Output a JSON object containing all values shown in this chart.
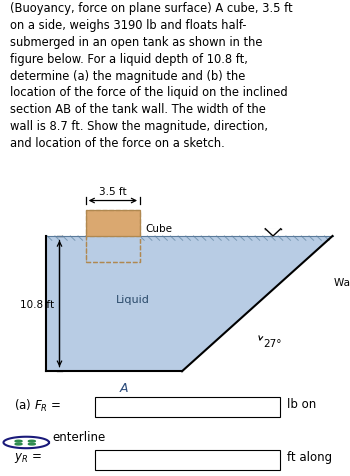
{
  "title_text": "(Buoyancy, force on plane surface) A cube, 3.5 ft on a side, weighs 3190 lb and floats half-submerged in an open tank as shown in the figure below. For a liquid depth of 10.8 ft, determine (a) the magnitude and (b) the location of the force of the liquid on the inclined section AB of the tank wall. The width of the wall is 8.7 ft. Show the magnitude, direction, and location of the force on a sketch.",
  "bg_color": "#ffffff",
  "liquid_color": "#b8cce4",
  "cube_color": "#daa870",
  "cube_edge_color": "#b08850",
  "hatch_color": "#8aaac0",
  "dim_35": "3.5 ft",
  "label_cube": "Cube",
  "label_liquid": "Liquid",
  "label_depth": "10.8 ft",
  "label_wall": "Wall width",
  "label_angle": "27°",
  "label_A": "A",
  "label_a": "(a) F_R =",
  "label_lb_on": "lb on",
  "label_enterline": "enterline",
  "label_yR": "y_R =",
  "label_ft_along": "ft along",
  "text_fontsize": 8.3,
  "fig_width": 3.5,
  "fig_height": 4.77
}
